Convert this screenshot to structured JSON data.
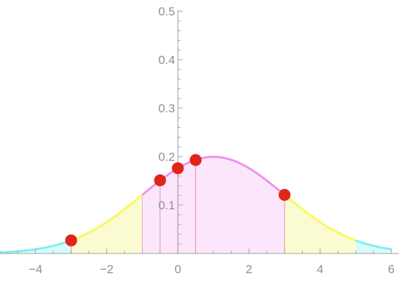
{
  "chart_data": {
    "type": "area",
    "title": "",
    "xlabel": "",
    "ylabel": "",
    "xlim": [
      -5,
      6
    ],
    "ylim": [
      0,
      0.5
    ],
    "grid": false,
    "legend": "none",
    "distribution": {
      "name": "normal",
      "mean": 1,
      "sd": 2
    },
    "x_ticks": [
      {
        "value": -4,
        "label": "−4"
      },
      {
        "value": -2,
        "label": "−2"
      },
      {
        "value": 0,
        "label": "0"
      },
      {
        "value": 2,
        "label": "2"
      },
      {
        "value": 4,
        "label": "4"
      },
      {
        "value": 6,
        "label": "6"
      }
    ],
    "y_ticks": [
      {
        "value": 0.1,
        "label": "0.1"
      },
      {
        "value": 0.2,
        "label": "0.2"
      },
      {
        "value": 0.3,
        "label": "0.3"
      },
      {
        "value": 0.4,
        "label": "0.4"
      },
      {
        "value": 0.5,
        "label": "0.5"
      }
    ],
    "regions": [
      {
        "from": -5,
        "to": -1,
        "fill": "#d9fbfb",
        "line": "#7eeef2"
      },
      {
        "from": -1,
        "to": 3,
        "fill": "#fce6fb",
        "line": "#ee92ee"
      },
      {
        "from": 3,
        "to": 5,
        "fill": "#fbfbd2",
        "line": "#fafa55"
      },
      {
        "from": 5,
        "to": 6,
        "fill": "#d9fbfb",
        "line": "#7eeef2"
      }
    ],
    "outer_band_from": -3,
    "points": [
      {
        "x": -3,
        "y": 0.027
      },
      {
        "x": -0.5,
        "y": 0.151
      },
      {
        "x": 0,
        "y": 0.176
      },
      {
        "x": 0.5,
        "y": 0.193
      },
      {
        "x": 3,
        "y": 0.121
      }
    ],
    "point_color": "#e0261a",
    "stem_color": "#e8a0b0"
  }
}
